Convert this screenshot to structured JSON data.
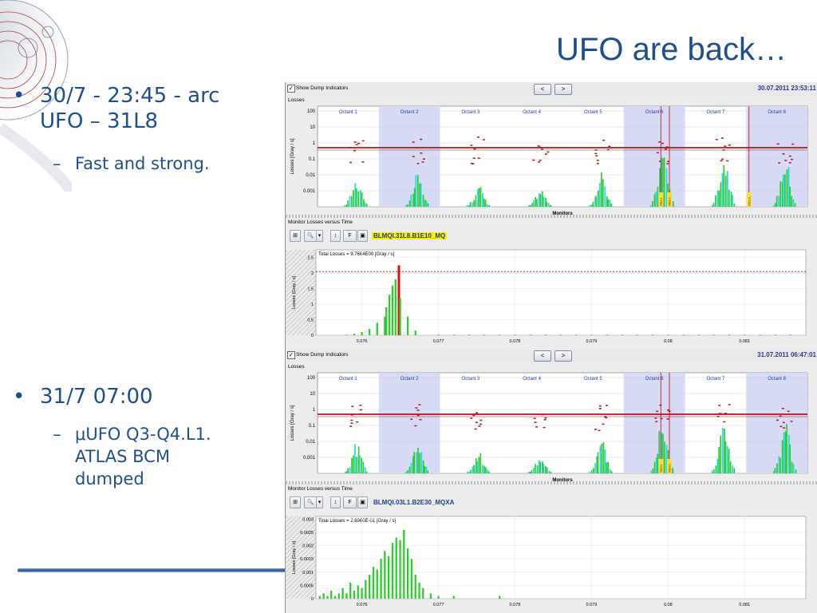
{
  "slide": {
    "title": "UFO are back…",
    "bullets": [
      {
        "text_line1": "30/7 - 23:45 - arc",
        "text_line2": "UFO – 31L8",
        "sub": [
          {
            "text": "Fast and strong."
          }
        ]
      },
      {
        "text_line1": "31/7 07:00",
        "sub": [
          {
            "line1": "μUFO Q3-Q4.L1.",
            "line2": "ATLAS BCM",
            "line3": "dumped"
          }
        ]
      }
    ],
    "bullet_glyph": "•",
    "sub_glyph": "–"
  },
  "colors": {
    "title": "#1f4e8c",
    "loss_bar": "#2ecc2e",
    "loss_cyan": "#20d8e8",
    "threshold": "#b01818",
    "octant_band": "#d8dbf7"
  },
  "panels": [
    {
      "show_dump_label": "Show Dump Indicators",
      "prev_label": "<",
      "next_label": ">",
      "timestamp": "30.07.2011 23:53:11",
      "losses_label": "Losses",
      "ylabel": "Losses [Gray / s]",
      "xlabel": "Monitors",
      "yticks": [
        "100",
        "10",
        "1",
        "0.1",
        "0.01",
        "0.001"
      ],
      "octants": [
        "Octant 1",
        "Octant 2",
        "Octant 3",
        "Octant 4",
        "Octant 5",
        "Octant 6",
        "Octant 7",
        "Octant 8"
      ],
      "dump_markers": [
        "RBG1",
        "RBG2",
        "RBG3"
      ],
      "mvt_label": "Monitor Losses versus Time",
      "toolbar_icons": [
        "fit-icon",
        "zoom-icon",
        "dropdown-icon",
        "cursor-icon",
        "font-icon",
        "save-icon"
      ],
      "monitor_name": "BLMQI.31L8.B1E10_MQ",
      "monitor_highlight": true,
      "total_losses": "Total Losses = 9.7664E00 [Gray / s]",
      "time_ylabel": "Losses [Gray / s]",
      "time_yticks": [
        "2.5",
        "2",
        "1.5",
        "1",
        "0.5",
        "0"
      ],
      "time_xticks": [
        "0.076",
        "0.077",
        "0.078",
        "0.079",
        "0.08",
        "0.081"
      ],
      "chart_data": {
        "type": "bar",
        "title": "Total Losses = 9.7664E00 [Gray / s]",
        "ylabel": "Losses [Gray / s]",
        "ylim": [
          0,
          2.75
        ],
        "xlim": [
          0.0754,
          0.0818
        ],
        "threshold": 2.05,
        "x": [
          0.0758,
          0.0759,
          0.076,
          0.0761,
          0.0762,
          0.0763,
          0.07632,
          0.07636,
          0.0764,
          0.07644,
          0.07648,
          0.0765,
          0.0766,
          0.0767,
          0.077,
          0.0772,
          0.0774,
          0.0776,
          0.0778,
          0.078,
          0.0782,
          0.0784,
          0.0786,
          0.0788,
          0.079,
          0.0792,
          0.0794,
          0.0796,
          0.0798,
          0.08,
          0.0802,
          0.0804,
          0.0806,
          0.0808,
          0.081,
          0.0812,
          0.0814,
          0.0816
        ],
        "values": [
          0.02,
          0.05,
          0.1,
          0.2,
          0.4,
          0.6,
          0.9,
          1.3,
          1.6,
          1.8,
          2.25,
          1.2,
          0.6,
          0.15,
          0.02,
          0.02,
          0.02,
          0.02,
          0.02,
          0.02,
          0.02,
          0.02,
          0.02,
          0.02,
          0.02,
          0.02,
          0.02,
          0.02,
          0.02,
          0.02,
          0.02,
          0.02,
          0.02,
          0.02,
          0.02,
          0.02,
          0.02,
          0.02
        ],
        "peak_x": 0.07648
      }
    },
    {
      "show_dump_label": "Show Dump Indicators",
      "prev_label": "<",
      "next_label": ">",
      "timestamp": "31.07.2011 06:47:01",
      "losses_label": "Losses",
      "ylabel": "Losses [Gray / s]",
      "xlabel": "Monitors",
      "yticks": [
        "100",
        "10",
        "1",
        "0.1",
        "0.01",
        "0.001"
      ],
      "octants": [
        "Octant 1",
        "Octant 2",
        "Octant 3",
        "Octant 4",
        "Octant 5",
        "Octant 6",
        "Octant 7",
        "Octant 8"
      ],
      "dump_markers": [
        "RBG1",
        "RBG2"
      ],
      "mvt_label": "Monitor Losses versus Time",
      "toolbar_icons": [
        "fit-icon",
        "zoom-icon",
        "dropdown-icon",
        "cursor-icon",
        "font-icon",
        "save-icon"
      ],
      "monitor_name": "BLMQI.03L1.B2E30_MQXA",
      "monitor_highlight": false,
      "total_losses": "Total Losses = 2.6960E-01 [Gray / s]",
      "time_ylabel": "Losses [Gray / s]",
      "time_yticks": [
        "0.003",
        "0.0025",
        "0.002",
        "0.0015",
        "0.001",
        "0.0005",
        "0"
      ],
      "time_xticks": [
        "0.076",
        "0.077",
        "0.078",
        "0.079",
        "0.08",
        "0.081"
      ],
      "chart_data": {
        "type": "bar",
        "title": "Total Losses = 2.6960E-01 [Gray / s]",
        "ylabel": "Losses [Gray / s]",
        "ylim": [
          0,
          0.0031
        ],
        "xlim": [
          0.0754,
          0.0818
        ],
        "x": [
          0.07545,
          0.0755,
          0.07555,
          0.0756,
          0.07565,
          0.0757,
          0.07575,
          0.0758,
          0.07585,
          0.0759,
          0.07595,
          0.076,
          0.07605,
          0.0761,
          0.07615,
          0.0762,
          0.07625,
          0.0763,
          0.07635,
          0.0764,
          0.07645,
          0.0765,
          0.07655,
          0.0766,
          0.07665,
          0.0767,
          0.07675,
          0.0768,
          0.0769,
          0.077,
          0.0772,
          0.0778
        ],
        "values": [
          0.0001,
          0.0002,
          0.0001,
          0.0003,
          0.0001,
          0.0002,
          0.0004,
          0.0002,
          0.0006,
          0.0003,
          0.0005,
          0.0004,
          0.0007,
          0.0009,
          0.0012,
          0.0011,
          0.0015,
          0.0018,
          0.0016,
          0.0021,
          0.0023,
          0.0022,
          0.0026,
          0.0019,
          0.0015,
          0.0009,
          0.0006,
          0.0004,
          0.0002,
          0.0001,
          0.0001,
          0.0001
        ]
      }
    }
  ]
}
